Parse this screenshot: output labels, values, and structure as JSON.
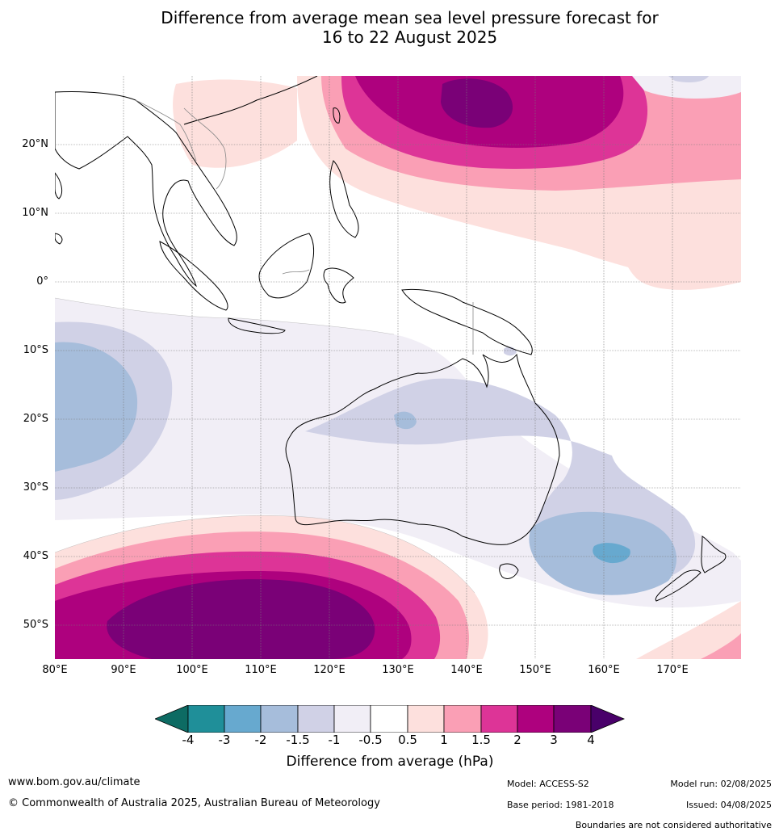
{
  "title": {
    "line1": "Difference from average mean sea level pressure forecast for",
    "line2": "16 to 22 August 2025"
  },
  "map": {
    "lat_labels": [
      "20°N",
      "10°N",
      "0°",
      "10°S",
      "20°S",
      "30°S",
      "40°S",
      "50°S"
    ],
    "lon_labels": [
      "80°E",
      "90°E",
      "100°E",
      "110°E",
      "120°E",
      "130°E",
      "140°E",
      "150°E",
      "160°E",
      "170°E"
    ]
  },
  "colorbar": {
    "ticks": [
      "-4",
      "-3",
      "-2",
      "-1.5",
      "-1",
      "-0.5",
      "0.5",
      "1",
      "1.5",
      "2",
      "3",
      "4"
    ],
    "colors": [
      "#0d6b63",
      "#1f8f99",
      "#67a9cf",
      "#a6bddb",
      "#d0d1e6",
      "#f1eef6",
      "#ffffff",
      "#fde0dd",
      "#fa9fb5",
      "#dd3497",
      "#ae017e",
      "#7a0177",
      "#49006a"
    ],
    "label": "Difference from average (hPa)"
  },
  "footer": {
    "website": "www.bom.gov.au/climate",
    "copyright": "© Commonwealth of Australia 2025, Australian Bureau of Meteorology",
    "model": "Model: ACCESS-S2",
    "base_period": "Base period: 1981-2018",
    "model_run": "Model run: 02/08/2025",
    "issued": "Issued: 04/08/2025",
    "boundaries": "Boundaries are not considered authoritative"
  }
}
